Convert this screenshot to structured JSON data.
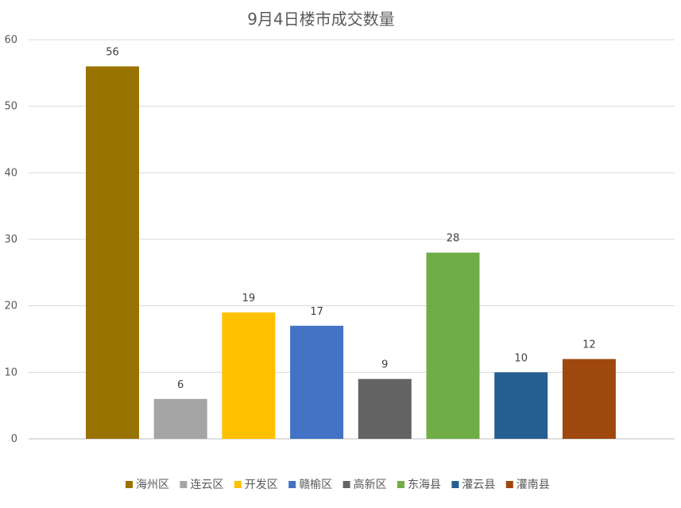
{
  "chart_data": {
    "type": "bar",
    "title": "9月4日楼市成交数量",
    "xlabel": "",
    "ylabel": "",
    "ylim": [
      0,
      60
    ],
    "yticks": [
      0,
      10,
      20,
      30,
      40,
      50,
      60
    ],
    "grid": true,
    "legend_position": "bottom",
    "categories": [
      "海州区",
      "连云区",
      "开发区",
      "赣榆区",
      "高新区",
      "东海县",
      "灌云县",
      "灌南县"
    ],
    "values": [
      56,
      6,
      19,
      17,
      9,
      28,
      10,
      12
    ],
    "colors": [
      "#997300",
      "#a5a5a5",
      "#ffc000",
      "#4472c4",
      "#636363",
      "#70ad47",
      "#255e91",
      "#9e480e"
    ]
  }
}
